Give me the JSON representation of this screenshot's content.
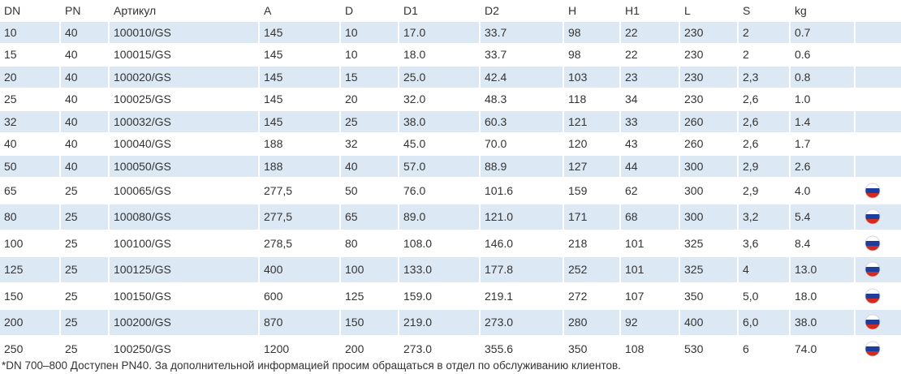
{
  "table": {
    "header": [
      "DN",
      "PN",
      "Артикул",
      "A",
      "D",
      "D1",
      "D2",
      "H",
      "H1",
      "L",
      "S",
      "kg"
    ],
    "rows": [
      [
        "10",
        "40",
        "100010/GS",
        "145",
        "10",
        "17.0",
        "33.7",
        "98",
        "22",
        "230",
        "2",
        "0.7"
      ],
      [
        "15",
        "40",
        "100015/GS",
        "145",
        "10",
        "18.0",
        "33.7",
        "98",
        "22",
        "230",
        "2",
        "0.6"
      ],
      [
        "20",
        "40",
        "100020/GS",
        "145",
        "15",
        "25.0",
        "42.4",
        "103",
        "23",
        "230",
        "2,3",
        "0.8"
      ],
      [
        "25",
        "40",
        "100025/GS",
        "145",
        "20",
        "32.0",
        "48.3",
        "118",
        "34",
        "230",
        "2,6",
        "1.0"
      ],
      [
        "32",
        "40",
        "100032/GS",
        "145",
        "25",
        "38.0",
        "60.3",
        "121",
        "33",
        "260",
        "2,6",
        "1.4"
      ],
      [
        "40",
        "40",
        "100040/GS",
        "188",
        "32",
        "45.0",
        "70.0",
        "120",
        "43",
        "260",
        "2,6",
        "1.7"
      ],
      [
        "50",
        "40",
        "100050/GS",
        "188",
        "40",
        "57.0",
        "88.9",
        "127",
        "44",
        "300",
        "2,9",
        "2.6"
      ],
      [
        "65",
        "25",
        "100065/GS",
        "277,5",
        "50",
        "76.0",
        "101.6",
        "159",
        "62",
        "300",
        "2,9",
        "4.0"
      ],
      [
        "80",
        "25",
        "100080/GS",
        "277,5",
        "65",
        "89.0",
        "121.0",
        "171",
        "68",
        "300",
        "3,2",
        "5.4"
      ],
      [
        "100",
        "25",
        "100100/GS",
        "278,5",
        "80",
        "108.0",
        "146.0",
        "218",
        "101",
        "325",
        "3,6",
        "8.4"
      ],
      [
        "125",
        "25",
        "100125/GS",
        "400",
        "100",
        "133.0",
        "177.8",
        "252",
        "101",
        "325",
        "4",
        "13.0"
      ],
      [
        "150",
        "25",
        "100150/GS",
        "600",
        "125",
        "159.0",
        "219.1",
        "272",
        "107",
        "350",
        "5,0",
        "18.0"
      ],
      [
        "200",
        "25",
        "100200/GS",
        "870",
        "150",
        "219.0",
        "273.0",
        "280",
        "92",
        "400",
        "6,0",
        "38.0"
      ],
      [
        "250",
        "25",
        "100250/GS",
        "1200",
        "200",
        "273.0",
        "355.6",
        "350",
        "108",
        "530",
        "6",
        "74.0"
      ]
    ]
  },
  "footnote": "*DN 700–800 Доступен PN40. За дополнительной информацией просим обращаться в отдел по обслуживанию клиентов."
}
